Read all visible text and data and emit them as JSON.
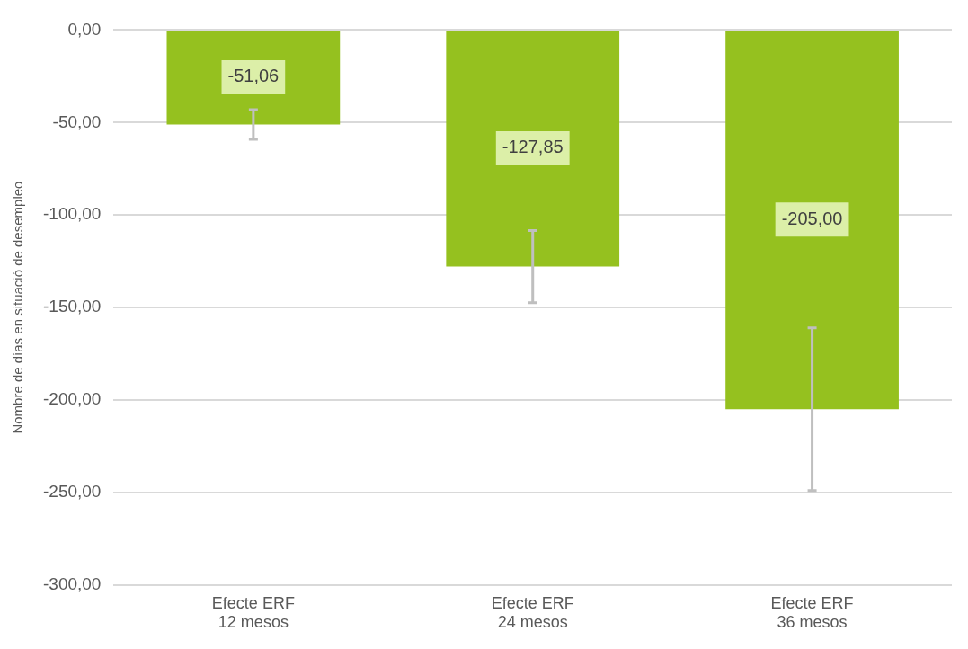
{
  "chart_data": {
    "type": "bar",
    "ylabel": "Nombre de días en situació de desempleo",
    "categories": [
      "Efecte ERF\n12 mesos",
      "Efecte ERF\n24 mesos",
      "Efecte ERF\n36 mesos"
    ],
    "values": [
      -51.06,
      -127.85,
      -205.0
    ],
    "value_labels": [
      "-51,06",
      "-127,85",
      "-205,00"
    ],
    "errors": [
      8,
      19.5,
      44
    ],
    "color": "#95c11f",
    "ylim": [
      -300,
      0
    ],
    "yticks": [
      {
        "value": 0,
        "label": "0,00"
      },
      {
        "value": -50,
        "label": "-50,00"
      },
      {
        "value": -100,
        "label": "-100,00"
      },
      {
        "value": -150,
        "label": "-150,00"
      },
      {
        "value": -200,
        "label": "-200,00"
      },
      {
        "value": -250,
        "label": "-250,00"
      },
      {
        "value": -300,
        "label": "-300,00"
      }
    ],
    "grid": "y",
    "legend": false
  }
}
